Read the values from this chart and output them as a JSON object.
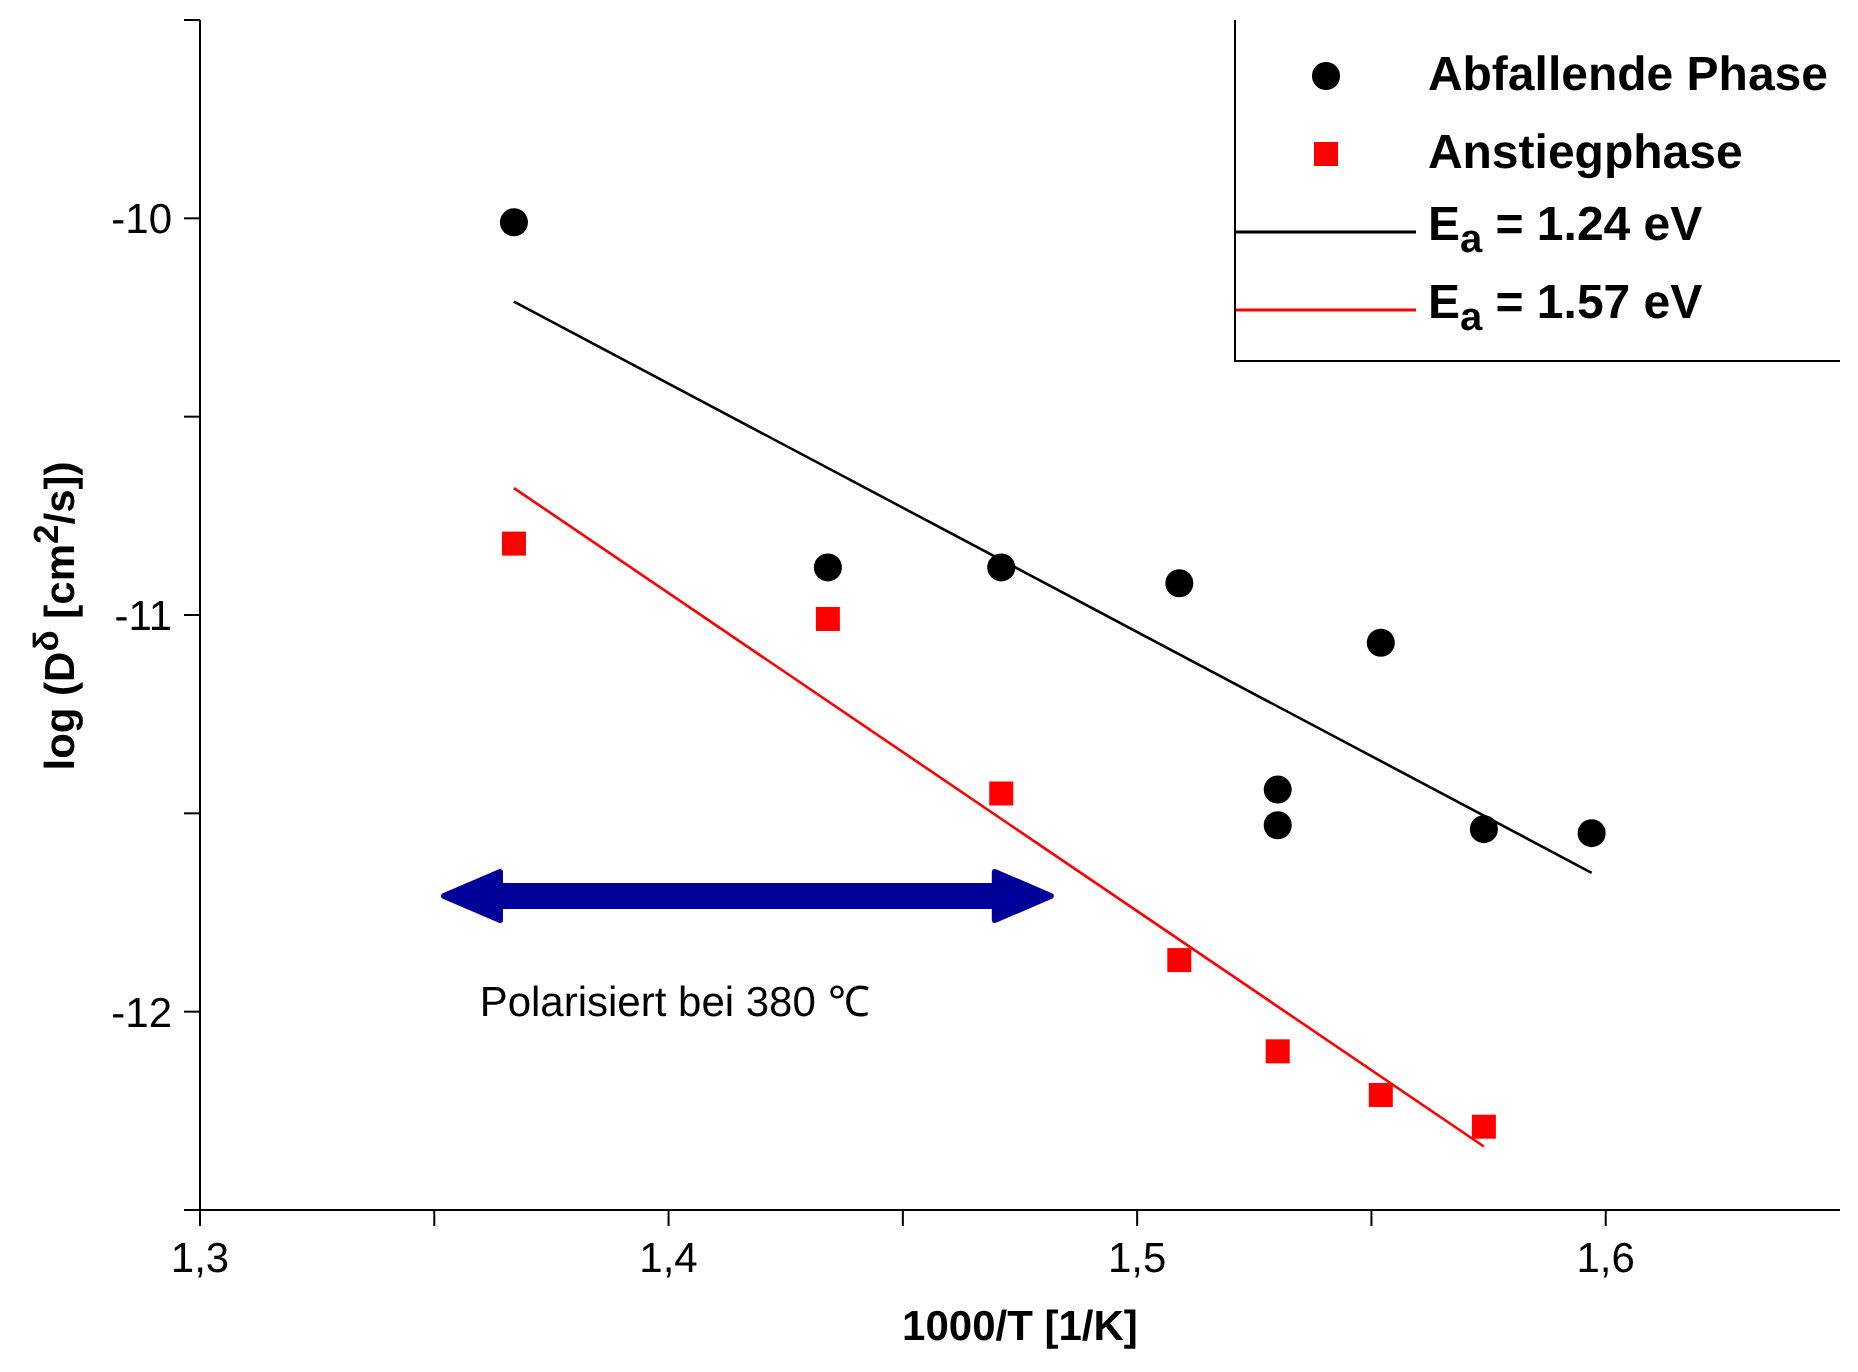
{
  "chart_data": {
    "type": "scatter",
    "xlabel": "1000/T [1/K]",
    "ylabel": "log (D$^{δ}$ [cm$^{2}$/s])",
    "xlim": [
      1.3,
      1.65
    ],
    "ylim": [
      -12.5,
      -9.5
    ],
    "xticks": [
      {
        "value": 1.3,
        "label": "1,3"
      },
      {
        "value": 1.35,
        "label": null
      },
      {
        "value": 1.4,
        "label": "1,4"
      },
      {
        "value": 1.45,
        "label": null
      },
      {
        "value": 1.5,
        "label": "1,5"
      },
      {
        "value": 1.55,
        "label": null
      },
      {
        "value": 1.6,
        "label": "1,6"
      }
    ],
    "yticks": [
      {
        "value": -9.5,
        "label": null
      },
      -10,
      {
        "value": -10.5,
        "label": null
      },
      -11,
      {
        "value": -11.5,
        "label": null
      },
      -12,
      {
        "value": -12.5,
        "label": null
      }
    ],
    "legend": "top right",
    "annotations": [
      "Polarisiert bei 380 ℃"
    ],
    "series": [
      {
        "name": "Abfallende Phase",
        "marker": "circle",
        "color": "#000000",
        "x": [
          1.367,
          1.434,
          1.471,
          1.509,
          1.552,
          1.53,
          1.53,
          1.574,
          1.597
        ],
        "values": [
          -10.01,
          -10.88,
          -10.88,
          -10.92,
          -11.07,
          -11.44,
          -11.53,
          -11.54,
          -11.55
        ]
      },
      {
        "name": "Anstiegphase",
        "marker": "square",
        "color": "#ff0000",
        "x": [
          1.367,
          1.434,
          1.471,
          1.509,
          1.53,
          1.552,
          1.574
        ],
        "values": [
          -10.82,
          -11.01,
          -11.45,
          -11.87,
          -12.1,
          -12.21,
          -12.29
        ]
      },
      {
        "name": "E$_{a}$ = 1.24 eV",
        "type": "line",
        "marker": "none",
        "color": "#000000",
        "x": [
          1.367,
          1.597
        ],
        "values": [
          -10.21,
          -11.65
        ]
      },
      {
        "name": "E$_{a}$ = 1.57 eV",
        "type": "line",
        "marker": "none",
        "color": "#ff0000",
        "x": [
          1.367,
          1.574
        ],
        "values": [
          -10.68,
          -12.34
        ]
      }
    ]
  }
}
